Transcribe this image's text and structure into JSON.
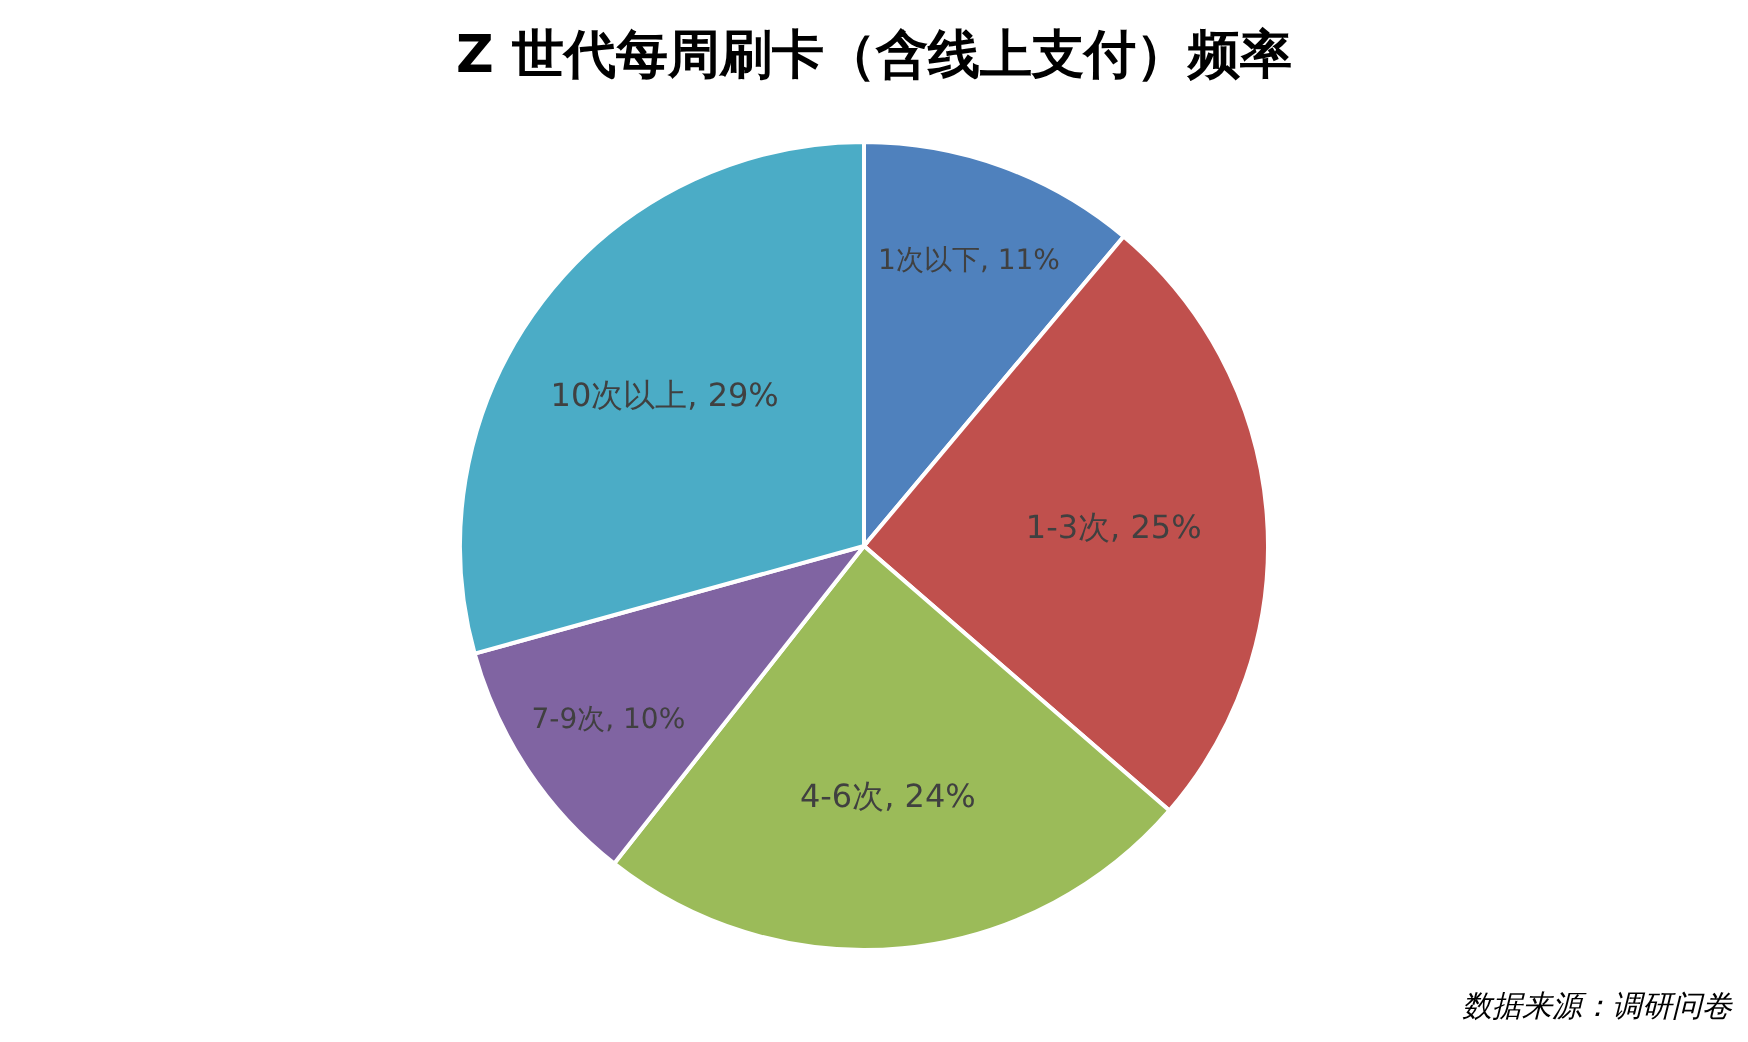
{
  "chart_data": {
    "type": "pie",
    "title": "Z 世代每周刷卡（含线上支付）频率",
    "categories": [
      "1次以下",
      "1-3次",
      "4-6次",
      "7-9次",
      "10次以上"
    ],
    "values": [
      11,
      25,
      24,
      10,
      29
    ],
    "value_labels": [
      "11%",
      "25%",
      "24%",
      "10%",
      "29%"
    ],
    "colors": [
      "#4f81bd",
      "#c0504d",
      "#9bbb59",
      "#8064a2",
      "#4bacc6"
    ],
    "annotations": [
      "数据来源：调研问卷"
    ]
  }
}
